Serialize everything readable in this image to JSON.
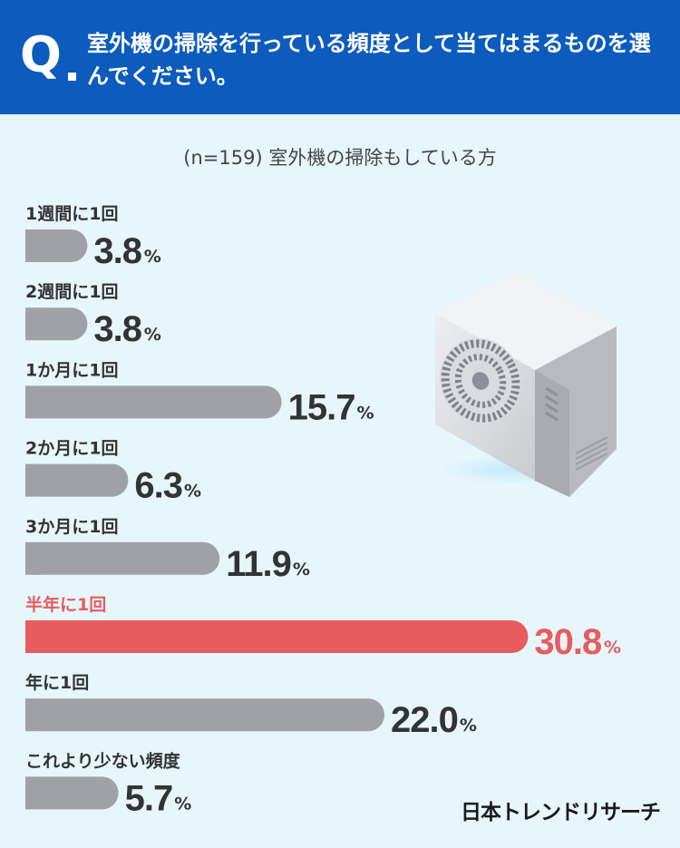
{
  "question": {
    "mark": "Q",
    "text": "室外機の掃除を行っている頻度として当てはまるものを選んでください。"
  },
  "chart_data": {
    "type": "bar",
    "orientation": "horizontal",
    "subtitle": "(n=159) 室外機の掃除もしている方",
    "unit": "%",
    "categories": [
      "1週間に1回",
      "2週間に1回",
      "1か月に1回",
      "2か月に1回",
      "3か月に1回",
      "半年に1回",
      "年に1回",
      "これより少ない頻度"
    ],
    "series": [
      {
        "values": [
          3.8,
          3.8,
          15.7,
          6.3,
          11.9,
          30.8,
          22.0,
          5.7
        ]
      }
    ],
    "highlight_index": 5,
    "colors": {
      "bar": "#a0a1a6",
      "highlight": "#e85b5e",
      "value_text": "#333333",
      "category_text": "#333333"
    },
    "value_labels": [
      "3.8",
      "3.8",
      "15.7",
      "6.3",
      "11.9",
      "30.8",
      "22.0",
      "5.7"
    ]
  },
  "logo": {
    "text": "日本トレンドリサーチ"
  },
  "image": {
    "icon": "air-conditioner-outdoor-unit-icon"
  }
}
